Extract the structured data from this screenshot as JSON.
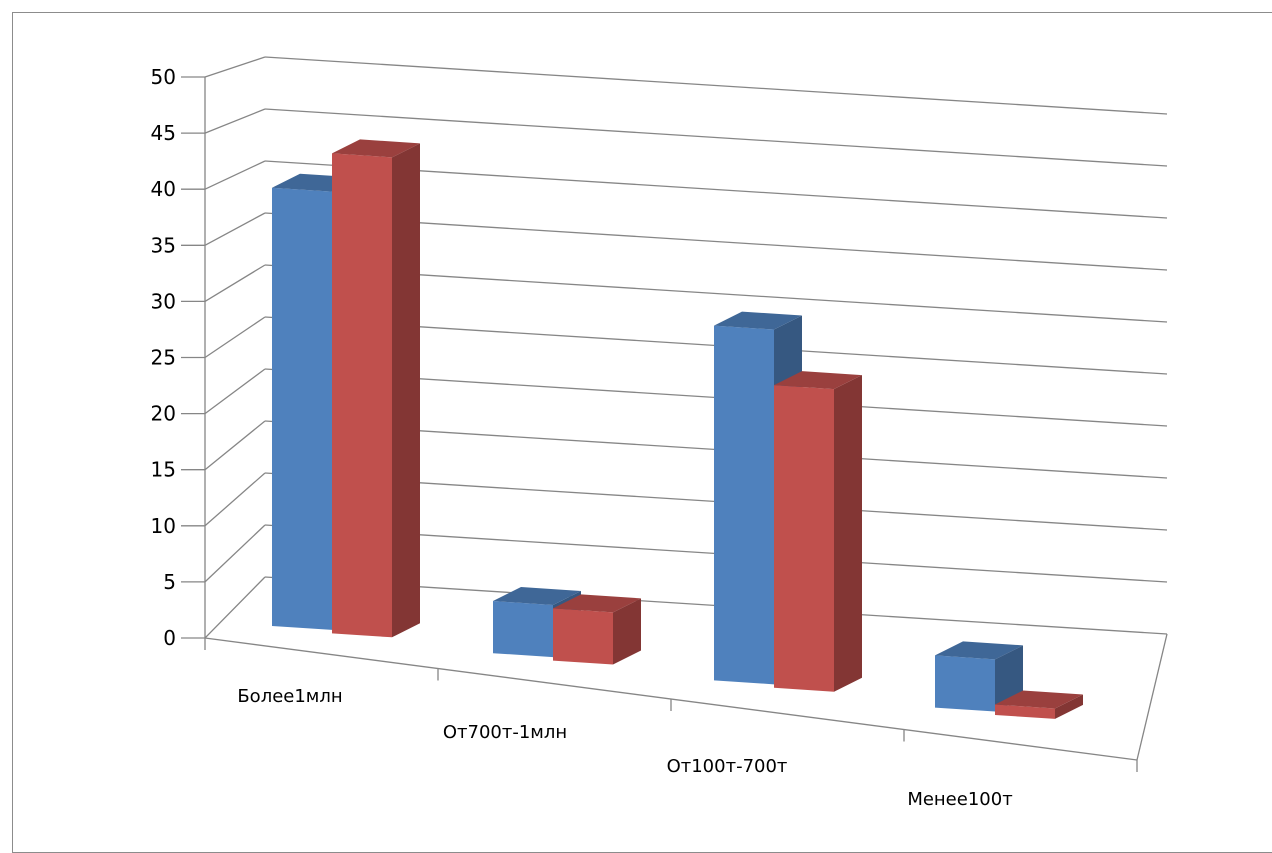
{
  "chart_data": {
    "type": "bar",
    "categories": [
      "Более1млн",
      "От700т-1млн",
      "От100т-700т",
      "Менее100т"
    ],
    "series": [
      {
        "values": [
          42,
          5,
          34,
          5
        ],
        "color": "#4f81bd"
      },
      {
        "values": [
          46,
          5,
          29,
          1
        ],
        "color": "#c0504d"
      }
    ],
    "yticks": [
      "0",
      "5",
      "10",
      "15",
      "20",
      "25",
      "30",
      "35",
      "40",
      "45",
      "50"
    ],
    "ylim": [
      0,
      50
    ],
    "ystep": 5,
    "grid": true,
    "legend": "none",
    "title": "",
    "xlabel": "",
    "ylabel": ""
  }
}
